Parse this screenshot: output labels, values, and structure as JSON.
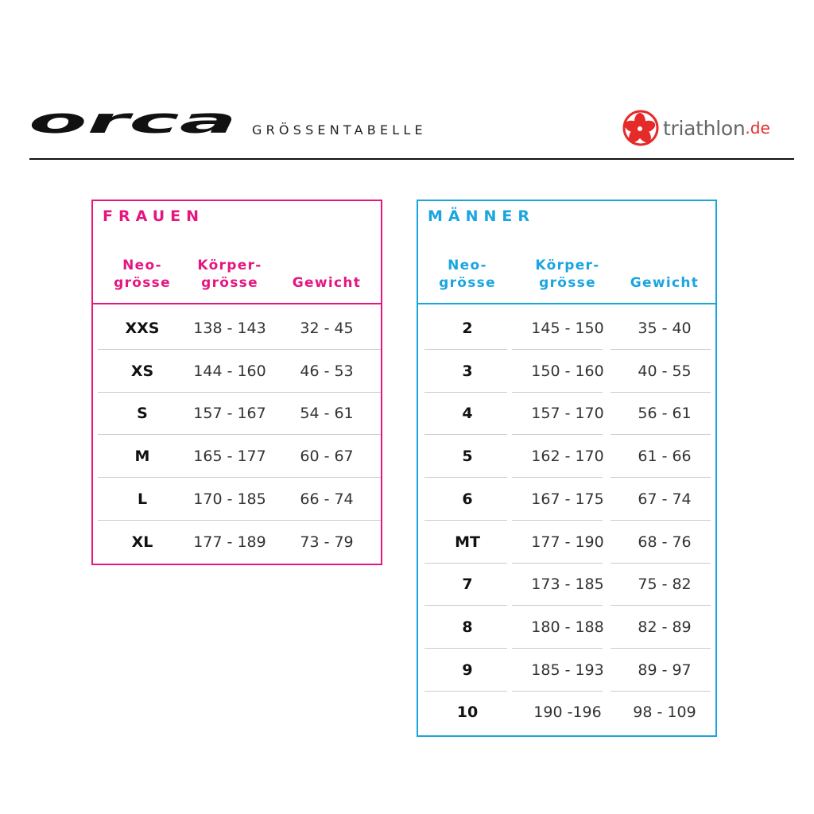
{
  "header": {
    "logo": "orca",
    "subtitle": "GRÖSSENTABELLE",
    "partner": {
      "name": "triathlon",
      "tld": ".de"
    }
  },
  "colors": {
    "frauen": "#e5167f",
    "maenner": "#1aa5e0"
  },
  "frauen": {
    "title": "FRAUEN",
    "columns": [
      [
        "Neo-",
        "grösse"
      ],
      [
        "Körper-",
        "grösse"
      ],
      [
        "",
        "Gewicht"
      ]
    ],
    "rows": [
      [
        "XXS",
        "138 - 143",
        "32 - 45"
      ],
      [
        "XS",
        "144 - 160",
        "46 - 53"
      ],
      [
        "S",
        "157 - 167",
        "54 - 61"
      ],
      [
        "M",
        "165 - 177",
        "60 - 67"
      ],
      [
        "L",
        "170 - 185",
        "66 - 74"
      ],
      [
        "XL",
        "177 - 189",
        "73 - 79"
      ]
    ]
  },
  "maenner": {
    "title": "MÄNNER",
    "columns": [
      [
        "Neo-",
        "grösse"
      ],
      [
        "Körper-",
        "grösse"
      ],
      [
        "",
        "Gewicht"
      ]
    ],
    "rows": [
      [
        "2",
        "145 - 150",
        "35 - 40"
      ],
      [
        "3",
        "150 - 160",
        "40 - 55"
      ],
      [
        "4",
        "157 - 170",
        "56 - 61"
      ],
      [
        "5",
        "162 - 170",
        "61 - 66"
      ],
      [
        "6",
        "167 - 175",
        "67 - 74"
      ],
      [
        "MT",
        "177 - 190",
        "68 - 76"
      ],
      [
        "7",
        "173 - 185",
        "75 - 82"
      ],
      [
        "8",
        "180 - 188",
        "82 - 89"
      ],
      [
        "9",
        "185 - 193",
        "89 - 97"
      ],
      [
        "10",
        "190 -196",
        "98 - 109"
      ]
    ]
  }
}
